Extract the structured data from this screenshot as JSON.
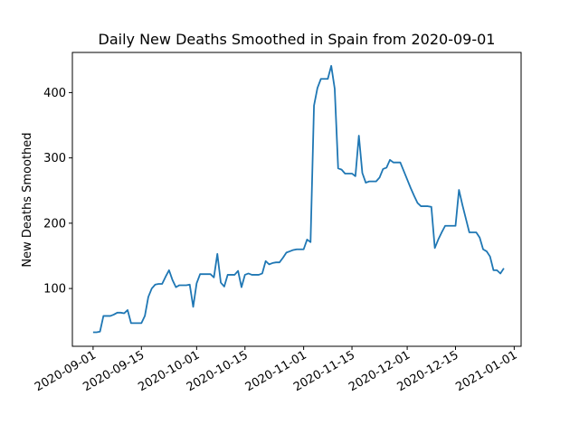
{
  "chart_data": {
    "type": "line",
    "title": "Daily New Deaths Smoothed in Spain from 2020-09-01",
    "y_label": "New Deaths Smoothed",
    "x": [
      "2020-09-01",
      "2020-09-02",
      "2020-09-03",
      "2020-09-04",
      "2020-09-05",
      "2020-09-06",
      "2020-09-07",
      "2020-09-08",
      "2020-09-09",
      "2020-09-10",
      "2020-09-11",
      "2020-09-12",
      "2020-09-13",
      "2020-09-14",
      "2020-09-15",
      "2020-09-16",
      "2020-09-17",
      "2020-09-18",
      "2020-09-19",
      "2020-09-20",
      "2020-09-21",
      "2020-09-22",
      "2020-09-23",
      "2020-09-24",
      "2020-09-25",
      "2020-09-26",
      "2020-09-27",
      "2020-09-28",
      "2020-09-29",
      "2020-09-30",
      "2020-10-01",
      "2020-10-02",
      "2020-10-03",
      "2020-10-04",
      "2020-10-05",
      "2020-10-06",
      "2020-10-07",
      "2020-10-08",
      "2020-10-09",
      "2020-10-10",
      "2020-10-11",
      "2020-10-12",
      "2020-10-13",
      "2020-10-14",
      "2020-10-15",
      "2020-10-16",
      "2020-10-17",
      "2020-10-18",
      "2020-10-19",
      "2020-10-20",
      "2020-10-21",
      "2020-10-22",
      "2020-10-23",
      "2020-10-24",
      "2020-10-25",
      "2020-10-26",
      "2020-10-27",
      "2020-10-28",
      "2020-10-29",
      "2020-10-30",
      "2020-10-31",
      "2020-11-01",
      "2020-11-02",
      "2020-11-03",
      "2020-11-04",
      "2020-11-05",
      "2020-11-06",
      "2020-11-07",
      "2020-11-08",
      "2020-11-09",
      "2020-11-10",
      "2020-11-11",
      "2020-11-12",
      "2020-11-13",
      "2020-11-14",
      "2020-11-15",
      "2020-11-16",
      "2020-11-17",
      "2020-11-18",
      "2020-11-19",
      "2020-11-20",
      "2020-11-21",
      "2020-11-22",
      "2020-11-23",
      "2020-11-24",
      "2020-11-25",
      "2020-11-26",
      "2020-11-27",
      "2020-11-28",
      "2020-11-29",
      "2020-11-30",
      "2020-12-01",
      "2020-12-02",
      "2020-12-03",
      "2020-12-04",
      "2020-12-05",
      "2020-12-06",
      "2020-12-07",
      "2020-12-08",
      "2020-12-09",
      "2020-12-10",
      "2020-12-11",
      "2020-12-12",
      "2020-12-13",
      "2020-12-14",
      "2020-12-15",
      "2020-12-16",
      "2020-12-17",
      "2020-12-18",
      "2020-12-19",
      "2020-12-20",
      "2020-12-21",
      "2020-12-22",
      "2020-12-23",
      "2020-12-24",
      "2020-12-25",
      "2020-12-26",
      "2020-12-27",
      "2020-12-28",
      "2020-12-29"
    ],
    "series": [
      {
        "color": "#1f77b4",
        "values": [
          33,
          33,
          34,
          58,
          58,
          58,
          60,
          63,
          63,
          62,
          67,
          47,
          47,
          47,
          47,
          58,
          87,
          100,
          106,
          107,
          107,
          118,
          128,
          113,
          102,
          105,
          105,
          105,
          106,
          72,
          108,
          122,
          122,
          122,
          122,
          117,
          153,
          109,
          103,
          121,
          121,
          121,
          127,
          102,
          121,
          123,
          121,
          121,
          121,
          123,
          142,
          137,
          139,
          140,
          140,
          147,
          155,
          157,
          159,
          160,
          160,
          160,
          175,
          171,
          380,
          407,
          421,
          421,
          421,
          441,
          406,
          284,
          282,
          276,
          276,
          276,
          272,
          334,
          277,
          262,
          264,
          264,
          264,
          270,
          283,
          285,
          297,
          293,
          293,
          293,
          280,
          267,
          254,
          242,
          231,
          226,
          226,
          226,
          225,
          162,
          175,
          186,
          196,
          196,
          196,
          196,
          251,
          228,
          207,
          186,
          186,
          186,
          178,
          160,
          157,
          149,
          128,
          128,
          123,
          131
        ]
      }
    ],
    "xlim": [
      "2020-08-26",
      "2021-01-03"
    ],
    "xticks": [
      "2020-09-01",
      "2020-09-15",
      "2020-10-01",
      "2020-10-15",
      "2020-11-01",
      "2020-11-15",
      "2020-12-01",
      "2020-12-15",
      "2021-01-01"
    ],
    "ylim": [
      11.5,
      461.5
    ],
    "yticks": [
      100,
      200,
      300,
      400
    ],
    "grid": false
  }
}
